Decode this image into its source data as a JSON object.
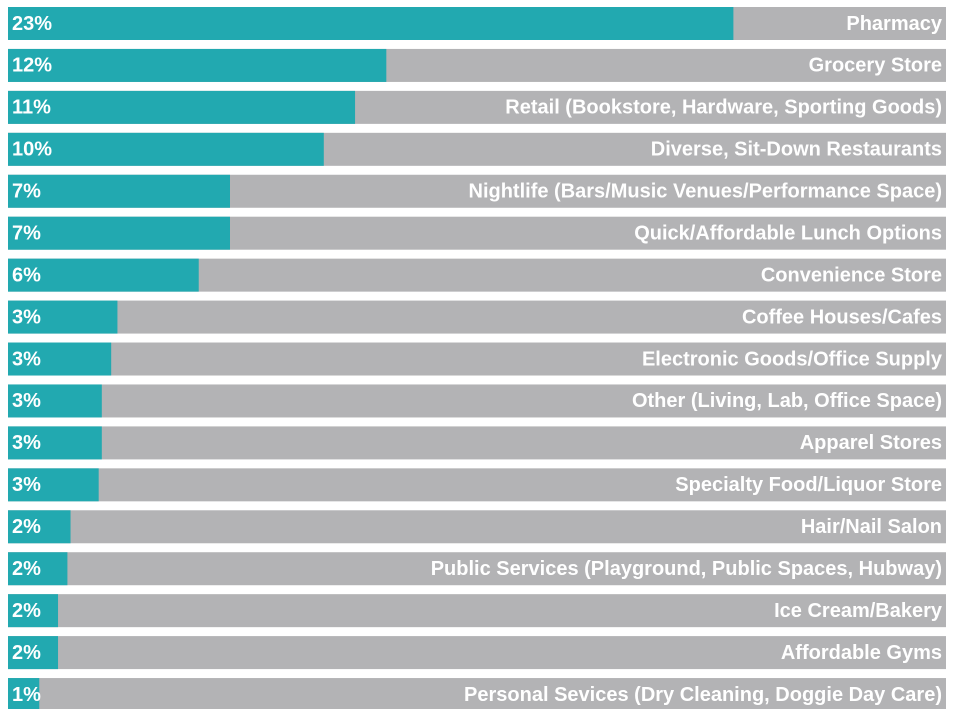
{
  "chart_data": {
    "type": "hbar",
    "categories": [
      "Pharmacy",
      "Grocery Store",
      "Retail (Bookstore, Hardware, Sporting Goods)",
      "Diverse, Sit-Down Restaurants",
      "Nightlife (Bars/Music Venues/Performance Space)",
      "Quick/Affordable Lunch Options",
      "Convenience Store",
      "Coffee Houses/Cafes",
      "Electronic Goods/Office Supply",
      "Other (Living, Lab, Office Space)",
      "Apparel Stores",
      "Specialty Food/Liquor Store",
      "Hair/Nail Salon",
      "Public Services (Playground, Public Spaces, Hubway)",
      "Ice Cream/Bakery",
      "Affordable Gyms",
      "Personal Sevices (Dry Cleaning, Doggie Day Care)"
    ],
    "values": [
      23.2,
      12.1,
      11.1,
      10.1,
      7.1,
      7.1,
      6.1,
      3.5,
      3.3,
      3.0,
      3.0,
      2.9,
      2.0,
      1.9,
      1.6,
      1.6,
      1.0
    ],
    "value_labels": [
      "23%",
      "12%",
      "11%",
      "10%",
      "7%",
      "7%",
      "6%",
      "3%",
      "3%",
      "3%",
      "3%",
      "3%",
      "2%",
      "2%",
      "2%",
      "2%",
      "1%"
    ],
    "color": "#22a9b0",
    "track_color": "#b3b3b5",
    "xlim": [
      0,
      30
    ]
  }
}
